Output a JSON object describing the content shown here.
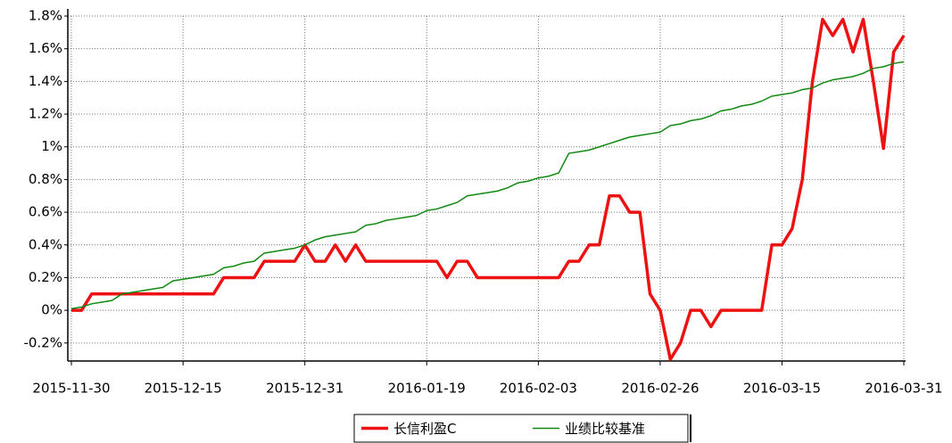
{
  "chart_data": {
    "type": "line",
    "categories": [
      "2015-11-30",
      null,
      null,
      null,
      null,
      null,
      null,
      null,
      null,
      null,
      null,
      "2015-12-15",
      null,
      null,
      null,
      null,
      null,
      null,
      null,
      null,
      null,
      null,
      null,
      "2015-12-31",
      null,
      null,
      null,
      null,
      null,
      null,
      null,
      null,
      null,
      null,
      null,
      "2016-01-19",
      null,
      null,
      null,
      null,
      null,
      null,
      null,
      null,
      null,
      null,
      "2016-02-03",
      null,
      null,
      null,
      null,
      null,
      null,
      null,
      null,
      null,
      null,
      null,
      "2016-02-26",
      null,
      null,
      null,
      null,
      null,
      null,
      null,
      null,
      null,
      null,
      null,
      "2016-03-15",
      null,
      null,
      null,
      null,
      null,
      null,
      null,
      null,
      null,
      null,
      null,
      "2016-03-31"
    ],
    "series": [
      {
        "name": "长信利盈C",
        "color": "#ee1111",
        "values": [
          0,
          0,
          0.1,
          0.1,
          0.1,
          0.1,
          0.1,
          0.1,
          0.1,
          0.1,
          0.1,
          0.1,
          0.1,
          0.1,
          0.1,
          0.2,
          0.2,
          0.2,
          0.2,
          0.3,
          0.3,
          0.3,
          0.3,
          0.4,
          0.3,
          0.3,
          0.4,
          0.3,
          0.4,
          0.3,
          0.3,
          0.3,
          0.3,
          0.3,
          0.3,
          0.3,
          0.3,
          0.2,
          0.3,
          0.3,
          0.2,
          0.2,
          0.2,
          0.2,
          0.2,
          0.2,
          0.2,
          0.2,
          0.2,
          0.3,
          0.3,
          0.4,
          0.4,
          0.7,
          0.7,
          0.6,
          0.6,
          0.1,
          0,
          -0.3,
          -0.2,
          0,
          0,
          -0.1,
          0,
          0,
          0,
          0,
          0,
          0.4,
          0.4,
          0.5,
          0.8,
          1.4,
          1.78,
          1.68,
          1.78,
          1.58,
          1.78,
          1.4,
          0.99,
          1.58,
          1.68
        ]
      },
      {
        "name": "业绩比较基准",
        "color": "#118811",
        "values": [
          0.01,
          0.02,
          0.04,
          0.05,
          0.06,
          0.1,
          0.11,
          0.12,
          0.13,
          0.14,
          0.18,
          0.19,
          0.2,
          0.21,
          0.22,
          0.26,
          0.27,
          0.29,
          0.3,
          0.35,
          0.36,
          0.37,
          0.38,
          0.4,
          0.43,
          0.45,
          0.46,
          0.47,
          0.48,
          0.52,
          0.53,
          0.55,
          0.56,
          0.57,
          0.58,
          0.61,
          0.62,
          0.64,
          0.66,
          0.7,
          0.71,
          0.72,
          0.73,
          0.75,
          0.78,
          0.79,
          0.81,
          0.82,
          0.84,
          0.96,
          0.97,
          0.98,
          1.0,
          1.02,
          1.04,
          1.06,
          1.07,
          1.08,
          1.09,
          1.13,
          1.14,
          1.16,
          1.17,
          1.19,
          1.22,
          1.23,
          1.25,
          1.26,
          1.28,
          1.31,
          1.32,
          1.33,
          1.35,
          1.36,
          1.39,
          1.41,
          1.42,
          1.43,
          1.45,
          1.48,
          1.49,
          1.51,
          1.52
        ]
      }
    ],
    "ylim": [
      -0.31,
      1.8
    ],
    "yticks": [
      {
        "value": -0.2,
        "label": "-0.2%"
      },
      {
        "value": 0,
        "label": "0%"
      },
      {
        "value": 0.2,
        "label": "0.2%"
      },
      {
        "value": 0.4,
        "label": "0.4%"
      },
      {
        "value": 0.6,
        "label": "0.6%"
      },
      {
        "value": 0.8,
        "label": "0.8%"
      },
      {
        "value": 1,
        "label": "1%"
      },
      {
        "value": 1.2,
        "label": "1.2%"
      },
      {
        "value": 1.4,
        "label": "1.4%"
      },
      {
        "value": 1.6,
        "label": "1.6%"
      },
      {
        "value": 1.8,
        "label": "1.8%"
      }
    ],
    "grid": true,
    "legend": "bottom"
  }
}
